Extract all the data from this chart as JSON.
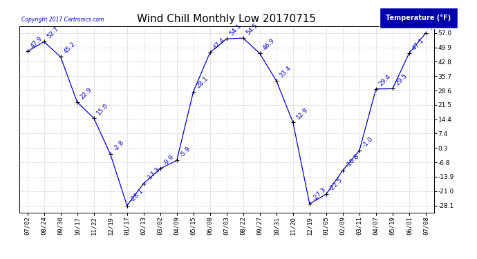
{
  "title": "Wind Chill Monthly Low 20170715",
  "copyright": "Copyright 2017 Cartronics.com",
  "legend_label": "Temperature (°F)",
  "x_labels": [
    "07/02",
    "08/24",
    "09/30",
    "10/17",
    "11/22",
    "12/19",
    "01/17",
    "02/13",
    "03/02",
    "04/09",
    "05/15",
    "06/08",
    "07/03",
    "08/22",
    "09/27",
    "10/31",
    "11/20",
    "12/19",
    "01/05",
    "02/09",
    "03/11",
    "04/07",
    "05/19",
    "06/01",
    "07/08"
  ],
  "y_values": [
    47.9,
    52.7,
    45.2,
    22.9,
    15.0,
    -2.8,
    -28.1,
    -17.3,
    -9.9,
    -5.9,
    28.1,
    47.4,
    54.1,
    54.5,
    46.9,
    33.4,
    12.9,
    -27.3,
    -22.5,
    -10.8,
    -1.0,
    29.4,
    29.5,
    47.1,
    57.0
  ],
  "data_labels": [
    "47.9",
    "52.7",
    "45.2",
    "22.9",
    "15.0",
    "-2.8",
    "-28.1",
    "-17.3",
    "-9.9",
    "-5.9",
    "28.1",
    "47.4",
    "54.1",
    "54.5",
    "46.9",
    "33.4",
    "12.9",
    "-27.3",
    "-22.5",
    "-10.8",
    "-1.0",
    "29.4",
    "29.5",
    "47.1",
    "57.0"
  ],
  "yticks": [
    57.0,
    49.9,
    42.8,
    35.7,
    28.6,
    21.5,
    14.4,
    7.4,
    0.3,
    -6.8,
    -13.9,
    -21.0,
    -28.1
  ],
  "ylim": [
    -31.5,
    60.5
  ],
  "line_color": "#0000cc",
  "marker_color": "#000000",
  "bg_color": "#ffffff",
  "grid_color": "#cccccc",
  "title_fontsize": 11,
  "label_fontsize": 6.5,
  "tick_fontsize": 6.5,
  "legend_bg": "#0000aa",
  "legend_text_color": "#ffffff",
  "copyright_color": "#0000cc"
}
